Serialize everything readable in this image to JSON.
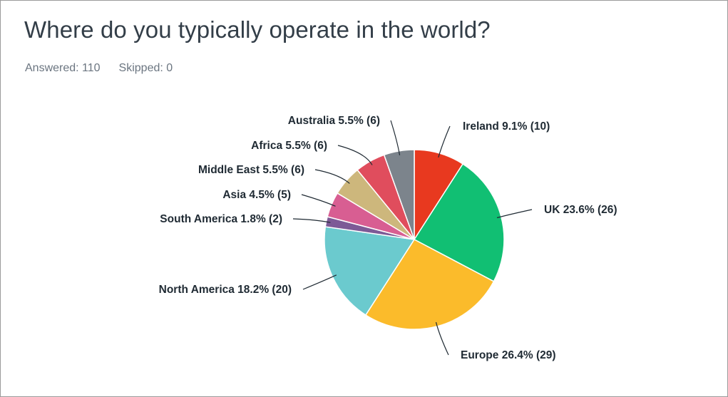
{
  "header": {
    "title": "Where do you typically operate in the world?",
    "answered_label": "Answered: 110",
    "skipped_label": "Skipped: 0"
  },
  "chart_data": {
    "type": "pie",
    "title": "Where do you typically operate in the world?",
    "total": 110,
    "slices": [
      {
        "label": "Ireland",
        "percent": 9.1,
        "count": 10,
        "color": "#e8391f",
        "text": "Ireland 9.1% (10)"
      },
      {
        "label": "UK",
        "percent": 23.6,
        "count": 26,
        "color": "#11bf73",
        "text": "UK 23.6% (26)"
      },
      {
        "label": "Europe",
        "percent": 26.4,
        "count": 29,
        "color": "#fbbb2b",
        "text": "Europe 26.4% (29)"
      },
      {
        "label": "North America",
        "percent": 18.2,
        "count": 20,
        "color": "#6bcace",
        "text": "North America 18.2% (20)"
      },
      {
        "label": "South America",
        "percent": 1.8,
        "count": 2,
        "color": "#7d5a96",
        "text": "South America 1.8% (2)"
      },
      {
        "label": "Asia",
        "percent": 4.5,
        "count": 5,
        "color": "#d85e92",
        "text": "Asia 4.5% (5)"
      },
      {
        "label": "Middle East",
        "percent": 5.5,
        "count": 6,
        "color": "#cdb77c",
        "text": "Middle East 5.5% (6)"
      },
      {
        "label": "Africa",
        "percent": 5.5,
        "count": 6,
        "color": "#e04d5d",
        "text": "Africa 5.5% (6)"
      },
      {
        "label": "Australia",
        "percent": 5.5,
        "count": 6,
        "color": "#7c848c",
        "text": "Australia 5.5% (6)"
      }
    ]
  }
}
